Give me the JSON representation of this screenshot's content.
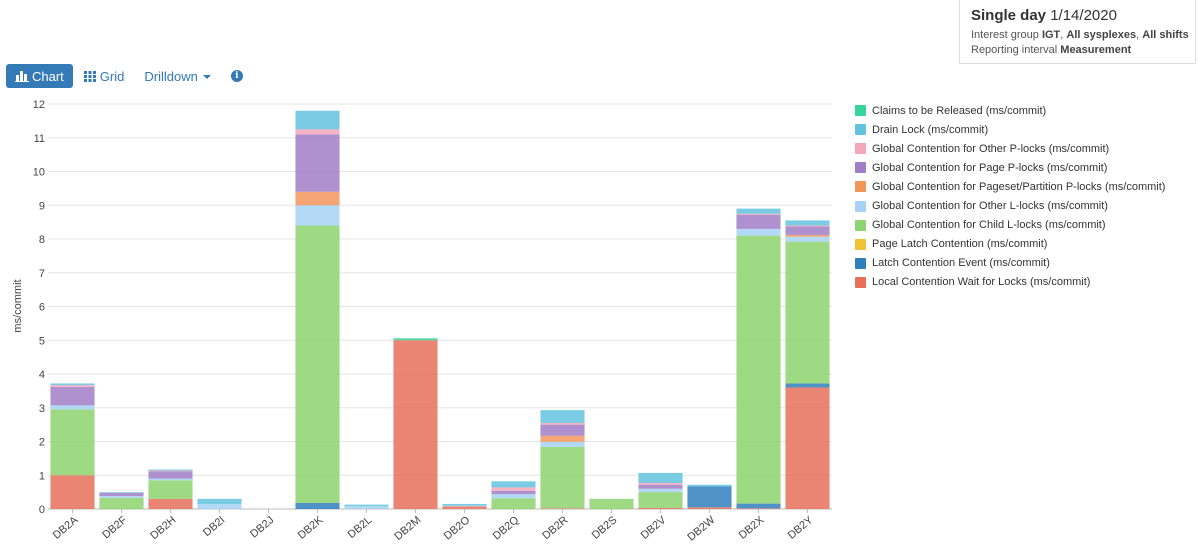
{
  "info": {
    "title_label": "Single day",
    "title_value": "1/14/2020",
    "group_label": "Interest group",
    "group_value": "IGT",
    "group_sep1": ",",
    "sysplexes": "All sysplexes",
    "group_sep2": ",",
    "shifts": "All shifts",
    "interval_label": "Reporting interval",
    "interval_value": "Measurement"
  },
  "toolbar": {
    "chart_label": "Chart",
    "grid_label": "Grid",
    "drilldown_label": "Drilldown",
    "chart_icon": "bar-chart-icon",
    "grid_icon": "grid-icon",
    "info_icon": "info-circle-icon",
    "info_glyph": "i"
  },
  "chart_data": {
    "type": "bar",
    "stacked": true,
    "ylabel": "ms/commit",
    "xlabel": "",
    "ylim": [
      0,
      12
    ],
    "yticks": [
      0,
      1,
      2,
      3,
      4,
      5,
      6,
      7,
      8,
      9,
      10,
      11,
      12
    ],
    "grid": true,
    "legend_position": "right",
    "categories": [
      "DB2A",
      "DB2F",
      "DB2H",
      "DB2I",
      "DB2J",
      "DB2K",
      "DB2L",
      "DB2M",
      "DB2O",
      "DB2Q",
      "DB2R",
      "DB2S",
      "DB2V",
      "DB2W",
      "DB2X",
      "DB2Y"
    ],
    "series": [
      {
        "name": "Local Contention Wait for Locks (ms/commit)",
        "color": "#e8705b",
        "values": [
          1.0,
          0.0,
          0.3,
          0.0,
          0.0,
          0.0,
          0.0,
          5.0,
          0.08,
          0.0,
          0.02,
          0.0,
          0.03,
          0.05,
          0.02,
          3.6
        ]
      },
      {
        "name": "Latch Contention Event (ms/commit)",
        "color": "#2f7fbd",
        "values": [
          0.0,
          0.0,
          0.0,
          0.0,
          0.0,
          0.18,
          0.0,
          0.0,
          0.0,
          0.0,
          0.0,
          0.0,
          0.0,
          0.62,
          0.14,
          0.12
        ]
      },
      {
        "name": "Page Latch Contention (ms/commit)",
        "color": "#efc237",
        "values": [
          0.0,
          0.0,
          0.0,
          0.0,
          0.0,
          0.0,
          0.0,
          0.0,
          0.0,
          0.0,
          0.0,
          0.0,
          0.0,
          0.0,
          0.0,
          0.0
        ]
      },
      {
        "name": "Global Contention for Child L-locks (ms/commit)",
        "color": "#8dd36f",
        "values": [
          1.95,
          0.33,
          0.55,
          0.0,
          0.0,
          8.22,
          0.0,
          0.0,
          0.0,
          0.32,
          1.82,
          0.3,
          0.47,
          0.0,
          7.94,
          4.2
        ]
      },
      {
        "name": "Global Contention for Other L-locks (ms/commit)",
        "color": "#a6d2f5",
        "values": [
          0.12,
          0.05,
          0.05,
          0.15,
          0.0,
          0.6,
          0.08,
          0.0,
          0.02,
          0.12,
          0.15,
          0.0,
          0.1,
          0.0,
          0.2,
          0.15
        ]
      },
      {
        "name": "Global Contention for Pageset/Partition P-locks (ms/commit)",
        "color": "#f2955a",
        "values": [
          0.0,
          0.0,
          0.0,
          0.0,
          0.0,
          0.4,
          0.0,
          0.0,
          0.0,
          0.0,
          0.18,
          0.0,
          0.0,
          0.0,
          0.0,
          0.05
        ]
      },
      {
        "name": "Global Contention for Page P-locks (ms/commit)",
        "color": "#a07ec6",
        "values": [
          0.55,
          0.1,
          0.22,
          0.0,
          0.0,
          1.7,
          0.0,
          0.0,
          0.0,
          0.1,
          0.33,
          0.0,
          0.12,
          0.0,
          0.42,
          0.25
        ]
      },
      {
        "name": "Global Contention for Other P-locks (ms/commit)",
        "color": "#f4a6bb",
        "values": [
          0.05,
          0.0,
          0.02,
          0.0,
          0.0,
          0.15,
          0.0,
          0.0,
          0.0,
          0.1,
          0.05,
          0.0,
          0.05,
          0.0,
          0.03,
          0.03
        ]
      },
      {
        "name": "Drain Lock (ms/commit)",
        "color": "#62c3de",
        "values": [
          0.05,
          0.02,
          0.03,
          0.15,
          0.0,
          0.55,
          0.05,
          0.0,
          0.05,
          0.18,
          0.38,
          0.0,
          0.3,
          0.05,
          0.15,
          0.15
        ]
      },
      {
        "name": "Claims to be Released (ms/commit)",
        "color": "#36d69a",
        "values": [
          0.0,
          0.0,
          0.0,
          0.0,
          0.0,
          0.0,
          0.0,
          0.06,
          0.0,
          0.0,
          0.0,
          0.0,
          0.0,
          0.0,
          0.0,
          0.0
        ]
      }
    ],
    "legend_order": [
      9,
      8,
      7,
      6,
      5,
      4,
      3,
      2,
      1,
      0
    ]
  }
}
